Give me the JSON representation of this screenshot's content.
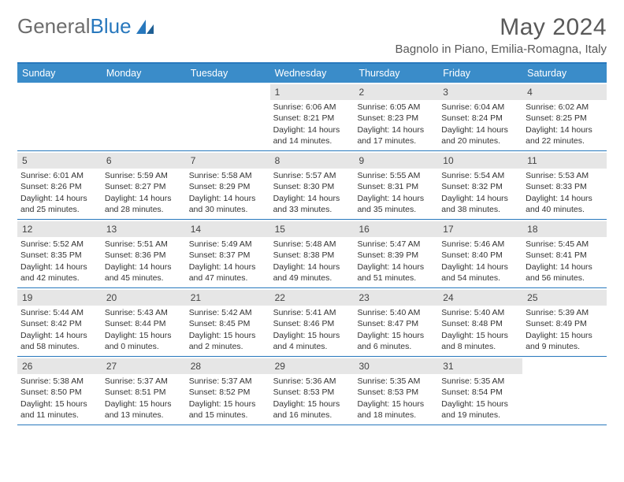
{
  "logo": {
    "text1": "General",
    "text2": "Blue"
  },
  "title": "May 2024",
  "location": "Bagnolo in Piano, Emilia-Romagna, Italy",
  "colors": {
    "header_bar": "#3a8cc9",
    "border": "#2878bd",
    "daynum_bg": "#e6e6e6",
    "text": "#333333",
    "title_text": "#595959"
  },
  "weekdays": [
    "Sunday",
    "Monday",
    "Tuesday",
    "Wednesday",
    "Thursday",
    "Friday",
    "Saturday"
  ],
  "weeks": [
    [
      {
        "num": "",
        "sunrise": "",
        "sunset": "",
        "daylight": ""
      },
      {
        "num": "",
        "sunrise": "",
        "sunset": "",
        "daylight": ""
      },
      {
        "num": "",
        "sunrise": "",
        "sunset": "",
        "daylight": ""
      },
      {
        "num": "1",
        "sunrise": "Sunrise: 6:06 AM",
        "sunset": "Sunset: 8:21 PM",
        "daylight": "Daylight: 14 hours and 14 minutes."
      },
      {
        "num": "2",
        "sunrise": "Sunrise: 6:05 AM",
        "sunset": "Sunset: 8:23 PM",
        "daylight": "Daylight: 14 hours and 17 minutes."
      },
      {
        "num": "3",
        "sunrise": "Sunrise: 6:04 AM",
        "sunset": "Sunset: 8:24 PM",
        "daylight": "Daylight: 14 hours and 20 minutes."
      },
      {
        "num": "4",
        "sunrise": "Sunrise: 6:02 AM",
        "sunset": "Sunset: 8:25 PM",
        "daylight": "Daylight: 14 hours and 22 minutes."
      }
    ],
    [
      {
        "num": "5",
        "sunrise": "Sunrise: 6:01 AM",
        "sunset": "Sunset: 8:26 PM",
        "daylight": "Daylight: 14 hours and 25 minutes."
      },
      {
        "num": "6",
        "sunrise": "Sunrise: 5:59 AM",
        "sunset": "Sunset: 8:27 PM",
        "daylight": "Daylight: 14 hours and 28 minutes."
      },
      {
        "num": "7",
        "sunrise": "Sunrise: 5:58 AM",
        "sunset": "Sunset: 8:29 PM",
        "daylight": "Daylight: 14 hours and 30 minutes."
      },
      {
        "num": "8",
        "sunrise": "Sunrise: 5:57 AM",
        "sunset": "Sunset: 8:30 PM",
        "daylight": "Daylight: 14 hours and 33 minutes."
      },
      {
        "num": "9",
        "sunrise": "Sunrise: 5:55 AM",
        "sunset": "Sunset: 8:31 PM",
        "daylight": "Daylight: 14 hours and 35 minutes."
      },
      {
        "num": "10",
        "sunrise": "Sunrise: 5:54 AM",
        "sunset": "Sunset: 8:32 PM",
        "daylight": "Daylight: 14 hours and 38 minutes."
      },
      {
        "num": "11",
        "sunrise": "Sunrise: 5:53 AM",
        "sunset": "Sunset: 8:33 PM",
        "daylight": "Daylight: 14 hours and 40 minutes."
      }
    ],
    [
      {
        "num": "12",
        "sunrise": "Sunrise: 5:52 AM",
        "sunset": "Sunset: 8:35 PM",
        "daylight": "Daylight: 14 hours and 42 minutes."
      },
      {
        "num": "13",
        "sunrise": "Sunrise: 5:51 AM",
        "sunset": "Sunset: 8:36 PM",
        "daylight": "Daylight: 14 hours and 45 minutes."
      },
      {
        "num": "14",
        "sunrise": "Sunrise: 5:49 AM",
        "sunset": "Sunset: 8:37 PM",
        "daylight": "Daylight: 14 hours and 47 minutes."
      },
      {
        "num": "15",
        "sunrise": "Sunrise: 5:48 AM",
        "sunset": "Sunset: 8:38 PM",
        "daylight": "Daylight: 14 hours and 49 minutes."
      },
      {
        "num": "16",
        "sunrise": "Sunrise: 5:47 AM",
        "sunset": "Sunset: 8:39 PM",
        "daylight": "Daylight: 14 hours and 51 minutes."
      },
      {
        "num": "17",
        "sunrise": "Sunrise: 5:46 AM",
        "sunset": "Sunset: 8:40 PM",
        "daylight": "Daylight: 14 hours and 54 minutes."
      },
      {
        "num": "18",
        "sunrise": "Sunrise: 5:45 AM",
        "sunset": "Sunset: 8:41 PM",
        "daylight": "Daylight: 14 hours and 56 minutes."
      }
    ],
    [
      {
        "num": "19",
        "sunrise": "Sunrise: 5:44 AM",
        "sunset": "Sunset: 8:42 PM",
        "daylight": "Daylight: 14 hours and 58 minutes."
      },
      {
        "num": "20",
        "sunrise": "Sunrise: 5:43 AM",
        "sunset": "Sunset: 8:44 PM",
        "daylight": "Daylight: 15 hours and 0 minutes."
      },
      {
        "num": "21",
        "sunrise": "Sunrise: 5:42 AM",
        "sunset": "Sunset: 8:45 PM",
        "daylight": "Daylight: 15 hours and 2 minutes."
      },
      {
        "num": "22",
        "sunrise": "Sunrise: 5:41 AM",
        "sunset": "Sunset: 8:46 PM",
        "daylight": "Daylight: 15 hours and 4 minutes."
      },
      {
        "num": "23",
        "sunrise": "Sunrise: 5:40 AM",
        "sunset": "Sunset: 8:47 PM",
        "daylight": "Daylight: 15 hours and 6 minutes."
      },
      {
        "num": "24",
        "sunrise": "Sunrise: 5:40 AM",
        "sunset": "Sunset: 8:48 PM",
        "daylight": "Daylight: 15 hours and 8 minutes."
      },
      {
        "num": "25",
        "sunrise": "Sunrise: 5:39 AM",
        "sunset": "Sunset: 8:49 PM",
        "daylight": "Daylight: 15 hours and 9 minutes."
      }
    ],
    [
      {
        "num": "26",
        "sunrise": "Sunrise: 5:38 AM",
        "sunset": "Sunset: 8:50 PM",
        "daylight": "Daylight: 15 hours and 11 minutes."
      },
      {
        "num": "27",
        "sunrise": "Sunrise: 5:37 AM",
        "sunset": "Sunset: 8:51 PM",
        "daylight": "Daylight: 15 hours and 13 minutes."
      },
      {
        "num": "28",
        "sunrise": "Sunrise: 5:37 AM",
        "sunset": "Sunset: 8:52 PM",
        "daylight": "Daylight: 15 hours and 15 minutes."
      },
      {
        "num": "29",
        "sunrise": "Sunrise: 5:36 AM",
        "sunset": "Sunset: 8:53 PM",
        "daylight": "Daylight: 15 hours and 16 minutes."
      },
      {
        "num": "30",
        "sunrise": "Sunrise: 5:35 AM",
        "sunset": "Sunset: 8:53 PM",
        "daylight": "Daylight: 15 hours and 18 minutes."
      },
      {
        "num": "31",
        "sunrise": "Sunrise: 5:35 AM",
        "sunset": "Sunset: 8:54 PM",
        "daylight": "Daylight: 15 hours and 19 minutes."
      },
      {
        "num": "",
        "sunrise": "",
        "sunset": "",
        "daylight": ""
      }
    ]
  ]
}
